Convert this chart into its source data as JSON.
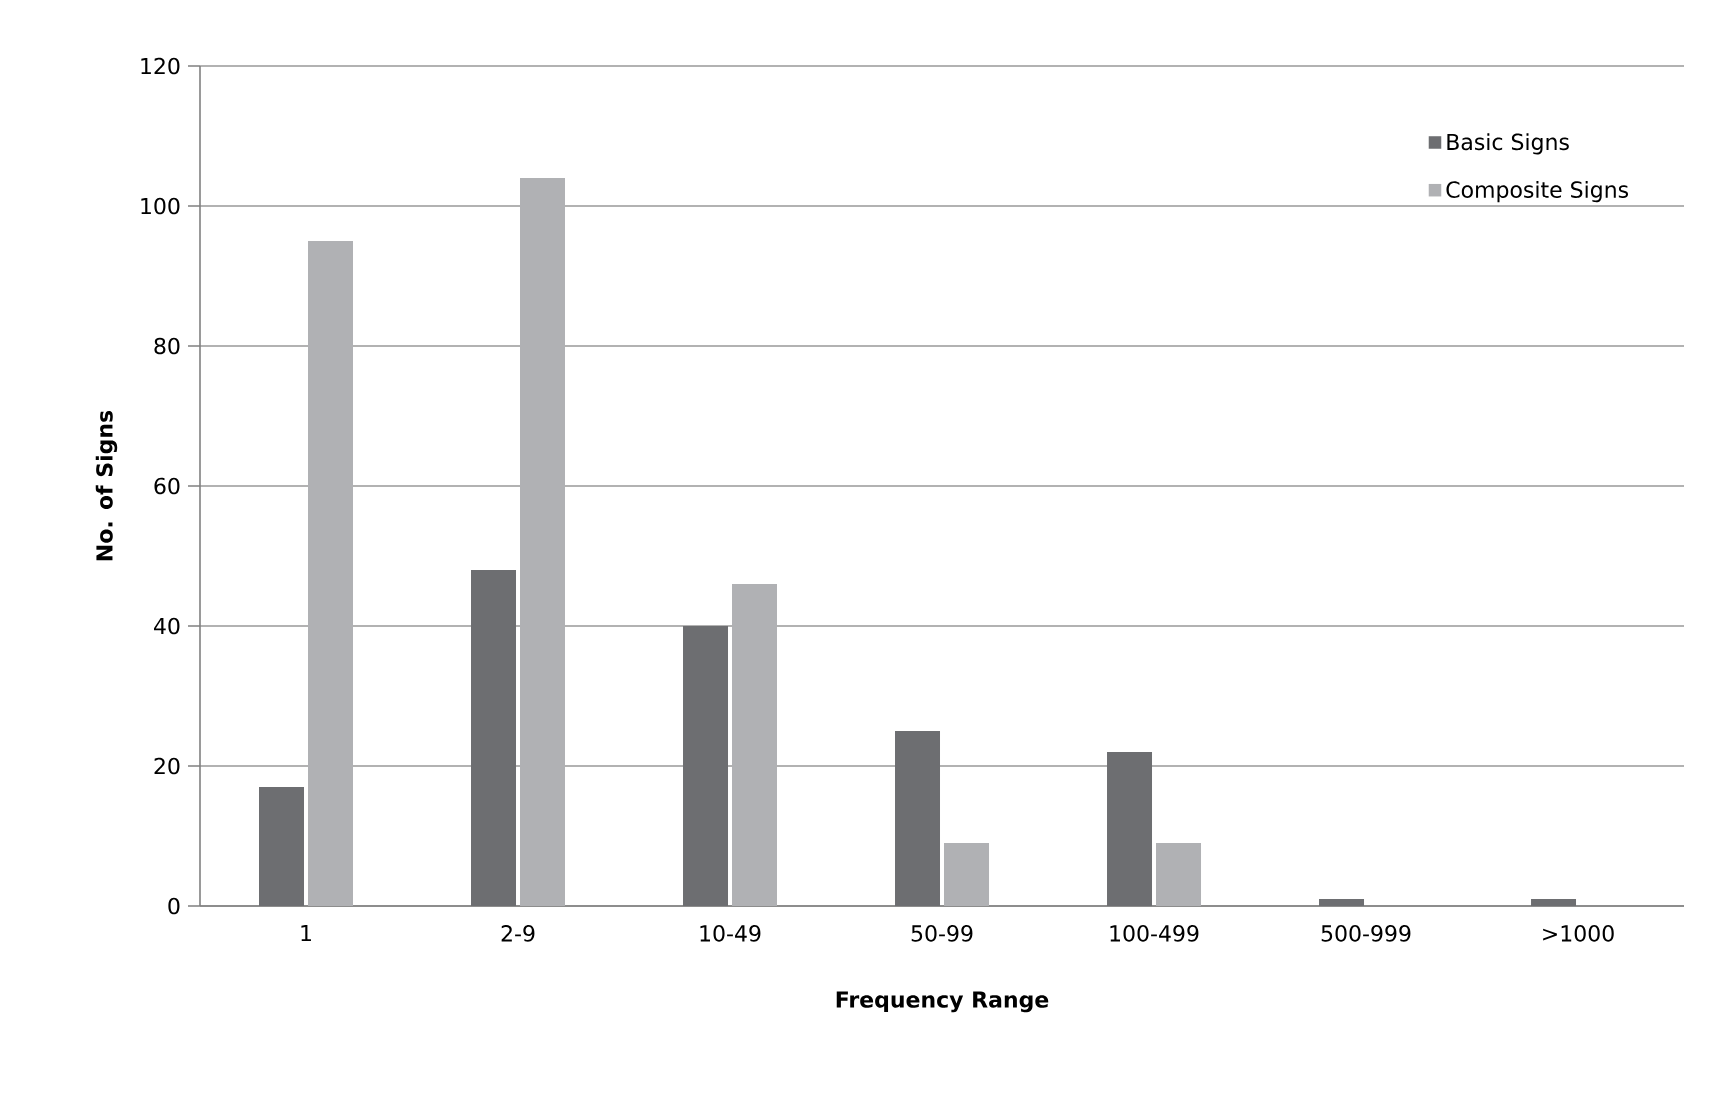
{
  "chart_data": {
    "type": "bar",
    "xlabel": "Frequency Range",
    "ylabel": "No. of Signs",
    "categories": [
      "1",
      "2-9",
      "10-49",
      "50-99",
      "100-499",
      "500-999",
      ">1000"
    ],
    "series": [
      {
        "name": "Basic Signs",
        "color": "#6d6e71",
        "values": [
          17,
          48,
          40,
          25,
          22,
          1,
          1
        ]
      },
      {
        "name": "Composite Signs",
        "color": "#b0b1b4",
        "values": [
          95,
          104,
          46,
          9,
          9,
          0,
          0
        ]
      }
    ],
    "ylim": [
      0,
      120
    ],
    "yticks": [
      0,
      20,
      40,
      60,
      80,
      100,
      120
    ],
    "grid": "y",
    "legend": "top right"
  }
}
